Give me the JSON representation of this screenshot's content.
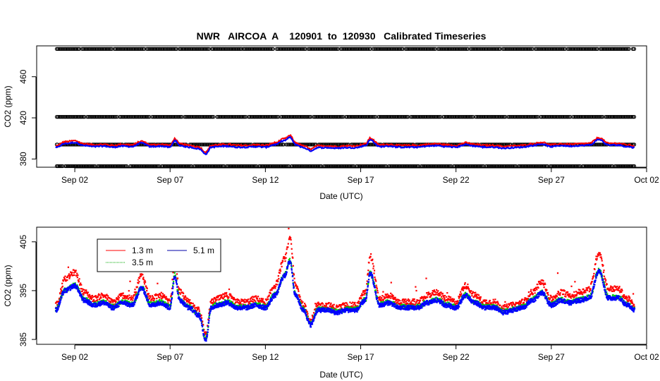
{
  "title": "NWR   AIRCOA  A    120901  to  120930   Calibrated Timeseries",
  "chart_data": [
    {
      "type": "scatter",
      "xlabel": "Date (UTC)",
      "ylabel": "CO2 (ppm)",
      "xlim": [
        "2012-08-31",
        "2012-10-02"
      ],
      "ylim": [
        372,
        490
      ],
      "x_ticks": [
        "Sep 02",
        "Sep 07",
        "Sep 12",
        "Sep 17",
        "Sep 22",
        "Sep 27",
        "Oct 02"
      ],
      "y_ticks": [
        380,
        420,
        460
      ],
      "grid": false,
      "calibration_levels": [
        {
          "value": 373,
          "color": "#000000"
        },
        {
          "value": 394,
          "color": "#000000"
        },
        {
          "value": 421,
          "color": "#000000"
        },
        {
          "value": 487,
          "color": "#000000"
        }
      ],
      "series": [
        {
          "color": "#ff0000",
          "marker": "point"
        },
        {
          "color": "#0000ff",
          "marker": "point"
        }
      ]
    },
    {
      "type": "scatter",
      "xlabel": "Date (UTC)",
      "ylabel": "CO2 (ppm)",
      "xlim": [
        "2012-08-31",
        "2012-10-02"
      ],
      "ylim": [
        384,
        408
      ],
      "x_ticks": [
        "Sep 02",
        "Sep 07",
        "Sep 12",
        "Sep 17",
        "Sep 22",
        "Sep 27",
        "Oct 02"
      ],
      "y_ticks": [
        385,
        395,
        405
      ],
      "grid": false,
      "legend": {
        "placement": "top-left",
        "entries": [
          {
            "label": "1.3 m",
            "color": "#ff0000"
          },
          {
            "label": "3.5 m",
            "color": "#00aa00"
          },
          {
            "label": "5.1 m",
            "color": "#0000aa"
          }
        ]
      },
      "series": [
        {
          "name": "1.3 m",
          "color": "#ff0000"
        },
        {
          "name": "3.5 m",
          "color": "#00cc00"
        },
        {
          "name": "5.1 m",
          "color": "#0000ff"
        }
      ],
      "baseline_keypoints": {
        "x": [
          "2012-09-01 00:00",
          "2012-09-01 12:00",
          "2012-09-02 00:00",
          "2012-09-02 12:00",
          "2012-09-03 00:00",
          "2012-09-03 12:00",
          "2012-09-04 00:00",
          "2012-09-04 12:00",
          "2012-09-05 00:00",
          "2012-09-05 12:00",
          "2012-09-06 00:00",
          "2012-09-06 12:00",
          "2012-09-07 00:00",
          "2012-09-07 06:00",
          "2012-09-07 12:00",
          "2012-09-08 00:00",
          "2012-09-08 12:00",
          "2012-09-08 21:00",
          "2012-09-09 04:00",
          "2012-09-09 12:00",
          "2012-09-10 00:00",
          "2012-09-10 12:00",
          "2012-09-11 00:00",
          "2012-09-11 12:00",
          "2012-09-12 00:00",
          "2012-09-12 12:00",
          "2012-09-13 00:00",
          "2012-09-13 07:00",
          "2012-09-13 14:00",
          "2012-09-14 00:00",
          "2012-09-14 09:00",
          "2012-09-14 18:00",
          "2012-09-15 06:00",
          "2012-09-15 18:00",
          "2012-09-16 06:00",
          "2012-09-16 18:00",
          "2012-09-17 06:00",
          "2012-09-17 12:00",
          "2012-09-18 00:00",
          "2012-09-18 12:00",
          "2012-09-19 00:00",
          "2012-09-19 12:00",
          "2012-09-20 00:00",
          "2012-09-20 12:00",
          "2012-09-21 00:00",
          "2012-09-21 12:00",
          "2012-09-22 00:00",
          "2012-09-22 12:00",
          "2012-09-23 00:00",
          "2012-09-23 12:00",
          "2012-09-24 00:00",
          "2012-09-24 12:00",
          "2012-09-25 00:00",
          "2012-09-25 12:00",
          "2012-09-26 00:00",
          "2012-09-26 12:00",
          "2012-09-27 00:00",
          "2012-09-27 12:00",
          "2012-09-28 00:00",
          "2012-09-28 12:00",
          "2012-09-29 00:00",
          "2012-09-29 12:00",
          "2012-09-30 00:00",
          "2012-09-30 12:00",
          "2012-10-01 00:00",
          "2012-10-01 09:00"
        ],
        "y": [
          391,
          395,
          396,
          393,
          392,
          392.5,
          391.5,
          392.5,
          392,
          395.5,
          392,
          392.5,
          391.5,
          398,
          393,
          391.5,
          390,
          385,
          391.5,
          392,
          392.5,
          391.5,
          391.5,
          392,
          391.5,
          394,
          398,
          401,
          394,
          391,
          388,
          391,
          391,
          390.5,
          391,
          391,
          393,
          398.5,
          392,
          392.5,
          391.5,
          391.5,
          391.5,
          392.5,
          393,
          392,
          391.5,
          394,
          392.5,
          391.5,
          391.5,
          390.5,
          391,
          391.5,
          393,
          394.5,
          392,
          393,
          392.5,
          393,
          393.5,
          399,
          393.5,
          393.5,
          392,
          391
        ]
      }
    }
  ]
}
